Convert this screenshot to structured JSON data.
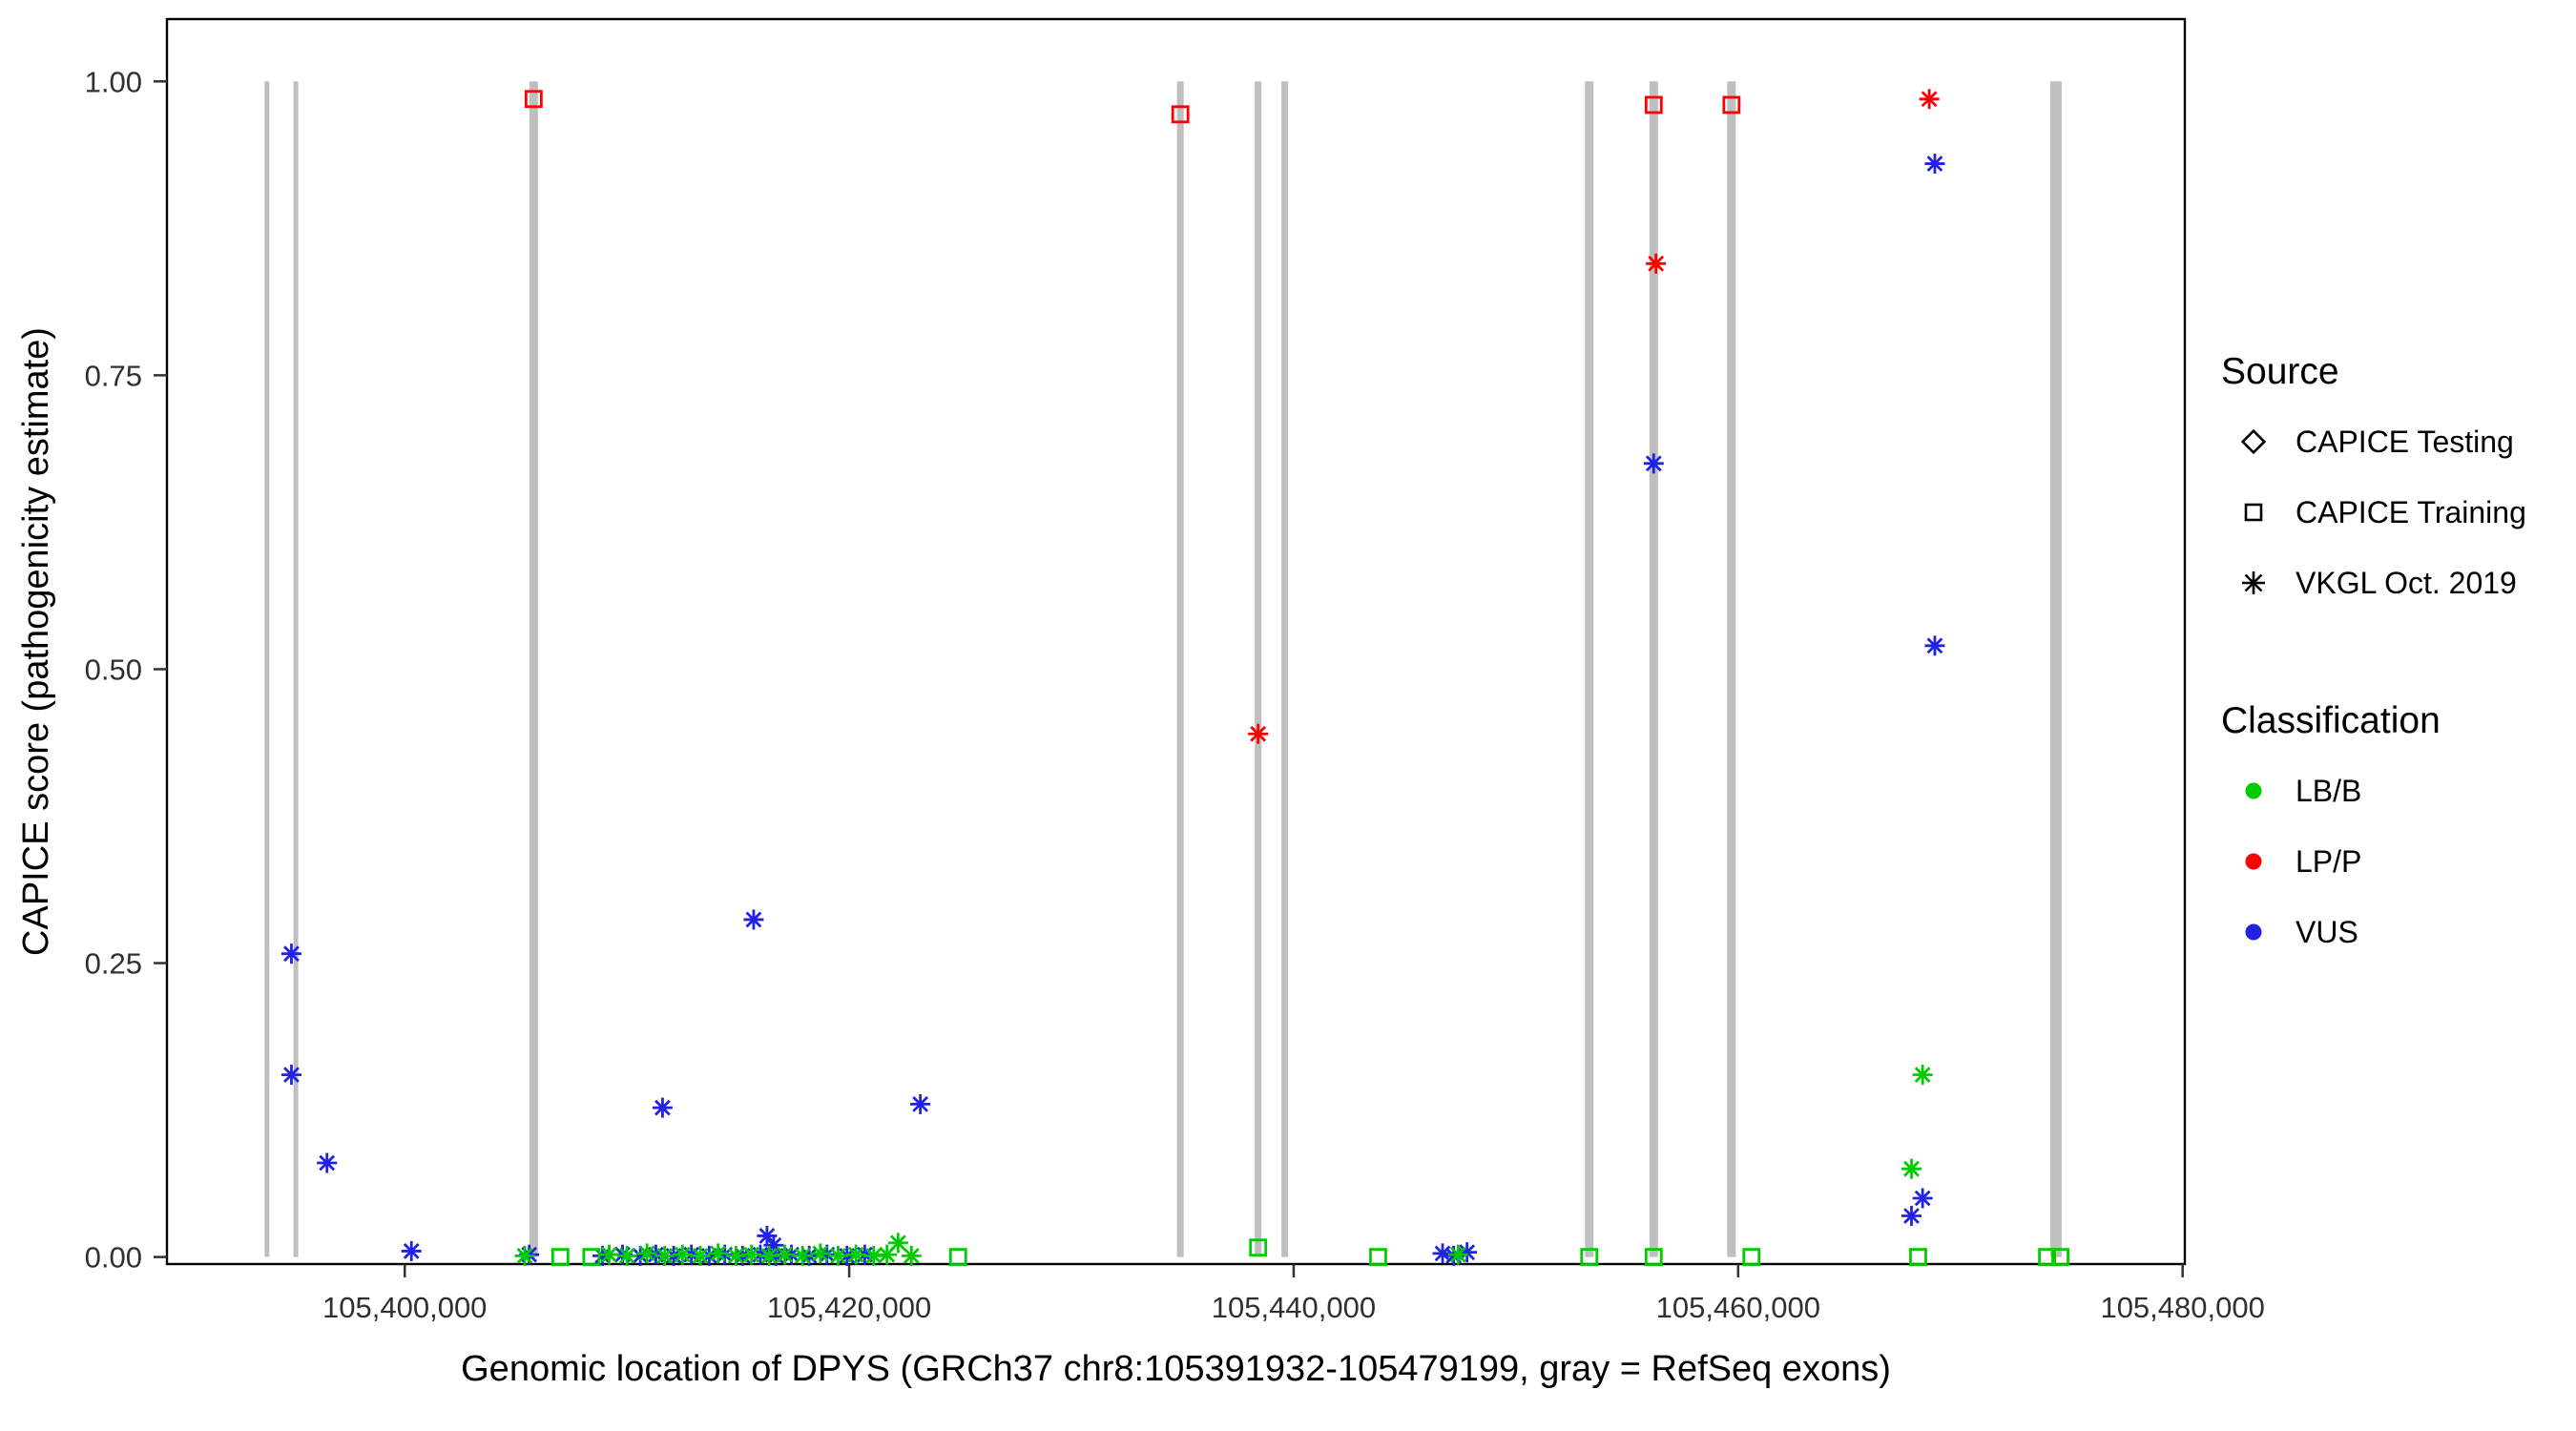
{
  "figure": {
    "background": "#FFFFFF"
  },
  "legend": {
    "source_title": "Source",
    "source_items": [
      {
        "label": "CAPICE Testing",
        "shape": "diamond"
      },
      {
        "label": "CAPICE Training",
        "shape": "square"
      },
      {
        "label": "VKGL Oct. 2019",
        "shape": "asterisk"
      }
    ],
    "classification_title": "Classification",
    "classification_items": [
      {
        "label": "LB/B",
        "color": "#00CC00"
      },
      {
        "label": "LP/P",
        "color": "#FF0000"
      },
      {
        "label": "VUS",
        "color": "#2222E2"
      }
    ]
  },
  "chart_data": {
    "type": "scatter",
    "title": "",
    "xlabel": "Genomic location of DPYS (GRCh37 chr8:105391932-105479199, gray = RefSeq exons)",
    "ylabel": "CAPICE score (pathogenicity estimate)",
    "xlim": [
      105389300,
      105480100
    ],
    "ylim": [
      -0.006,
      1.053
    ],
    "grid": false,
    "legend_position": "right",
    "x_ticks": [
      105400000,
      105420000,
      105440000,
      105460000,
      105480000
    ],
    "x_tick_labels": [
      "105,400,000",
      "105,420,000",
      "105,440,000",
      "105,460,000",
      "105,480,000"
    ],
    "y_ticks": [
      0,
      0.25,
      0.5,
      0.75,
      1
    ],
    "y_tick_labels": [
      "0.00",
      "0.25",
      "0.50",
      "0.75",
      "1.00"
    ],
    "exon_color": "#BFBFBF",
    "axis_color": "#000000",
    "tick_label_color": "#303030",
    "exons": [
      {
        "pos": 105393800,
        "width": 5
      },
      {
        "pos": 105395100,
        "width": 5
      },
      {
        "pos": 105405800,
        "width": 9
      },
      {
        "pos": 105434900,
        "width": 7
      },
      {
        "pos": 105438400,
        "width": 7
      },
      {
        "pos": 105439600,
        "width": 7
      },
      {
        "pos": 105453300,
        "width": 9
      },
      {
        "pos": 105456200,
        "width": 9
      },
      {
        "pos": 105459700,
        "width": 9
      },
      {
        "pos": 105474300,
        "width": 12
      }
    ],
    "series": [
      {
        "name": "VKGL Oct. 2019 - VUS",
        "source": "VKGL Oct. 2019",
        "classification": "VUS",
        "shape": "asterisk",
        "color": "#2222E2",
        "points": [
          [
            105394900,
            0.258
          ],
          [
            105394900,
            0.155
          ],
          [
            105396500,
            0.08
          ],
          [
            105400300,
            0.005
          ],
          [
            105405600,
            0.002
          ],
          [
            105408900,
            0.001
          ],
          [
            105409800,
            0.002
          ],
          [
            105410600,
            0.001
          ],
          [
            105411300,
            0.002
          ],
          [
            105411600,
            0.127
          ],
          [
            105412100,
            0.001
          ],
          [
            105412900,
            0.002
          ],
          [
            105413700,
            0.001
          ],
          [
            105414400,
            0.002
          ],
          [
            105415200,
            0.001
          ],
          [
            105415700,
            0.287
          ],
          [
            105416000,
            0.002
          ],
          [
            105416300,
            0.018
          ],
          [
            105416600,
            0.01
          ],
          [
            105416700,
            0.001
          ],
          [
            105417400,
            0.002
          ],
          [
            105418200,
            0.001
          ],
          [
            105419000,
            0.002
          ],
          [
            105419900,
            0.001
          ],
          [
            105420700,
            0.002
          ],
          [
            105423200,
            0.13
          ],
          [
            105446700,
            0.003
          ],
          [
            105447200,
            0.001
          ],
          [
            105447800,
            0.004
          ],
          [
            105456200,
            0.675
          ],
          [
            105467800,
            0.035
          ],
          [
            105468300,
            0.05
          ],
          [
            105468850,
            0.52
          ],
          [
            105468850,
            0.93
          ]
        ]
      },
      {
        "name": "VKGL Oct. 2019 - LB/B",
        "source": "VKGL Oct. 2019",
        "classification": "LB/B",
        "shape": "asterisk",
        "color": "#00CC00",
        "points": [
          [
            105405400,
            0.001
          ],
          [
            105409200,
            0.002
          ],
          [
            105410000,
            0.001
          ],
          [
            105410900,
            0.003
          ],
          [
            105411700,
            0.001
          ],
          [
            105412500,
            0.002
          ],
          [
            105413300,
            0.001
          ],
          [
            105414100,
            0.003
          ],
          [
            105414900,
            0.001
          ],
          [
            105415600,
            0.002
          ],
          [
            105416400,
            0.001
          ],
          [
            105417100,
            0.002
          ],
          [
            105417900,
            0.001
          ],
          [
            105418700,
            0.003
          ],
          [
            105419500,
            0.001
          ],
          [
            105420300,
            0.002
          ],
          [
            105421100,
            0.001
          ],
          [
            105421700,
            0.002
          ],
          [
            105422200,
            0.012
          ],
          [
            105422800,
            0.001
          ],
          [
            105447400,
            0.002
          ],
          [
            105467800,
            0.075
          ],
          [
            105468300,
            0.155
          ]
        ]
      },
      {
        "name": "VKGL Oct. 2019 - LP/P",
        "source": "VKGL Oct. 2019",
        "classification": "LP/P",
        "shape": "asterisk",
        "color": "#FF0000",
        "points": [
          [
            105438400,
            0.445
          ],
          [
            105456300,
            0.845
          ],
          [
            105468600,
            0.985
          ]
        ]
      },
      {
        "name": "CAPICE Training - LB/B",
        "source": "CAPICE Training",
        "classification": "LB/B",
        "shape": "square",
        "color": "#00CC00",
        "points": [
          [
            105407000,
            0.0
          ],
          [
            105408400,
            0.0
          ],
          [
            105424900,
            0.0
          ],
          [
            105438400,
            0.008
          ],
          [
            105443800,
            0.0
          ],
          [
            105453300,
            0.0
          ],
          [
            105456200,
            0.0
          ],
          [
            105460600,
            0.0
          ],
          [
            105468100,
            0.0
          ],
          [
            105473900,
            0.0
          ],
          [
            105474500,
            0.0
          ]
        ]
      },
      {
        "name": "CAPICE Training - LP/P",
        "source": "CAPICE Training",
        "classification": "LP/P",
        "shape": "square",
        "color": "#FF0000",
        "points": [
          [
            105405800,
            0.985
          ],
          [
            105434900,
            0.972
          ],
          [
            105456200,
            0.98
          ],
          [
            105459700,
            0.98
          ]
        ]
      },
      {
        "name": "CAPICE Testing",
        "source": "CAPICE Testing",
        "classification": "",
        "shape": "diamond",
        "color": "#000000",
        "points": []
      }
    ]
  }
}
